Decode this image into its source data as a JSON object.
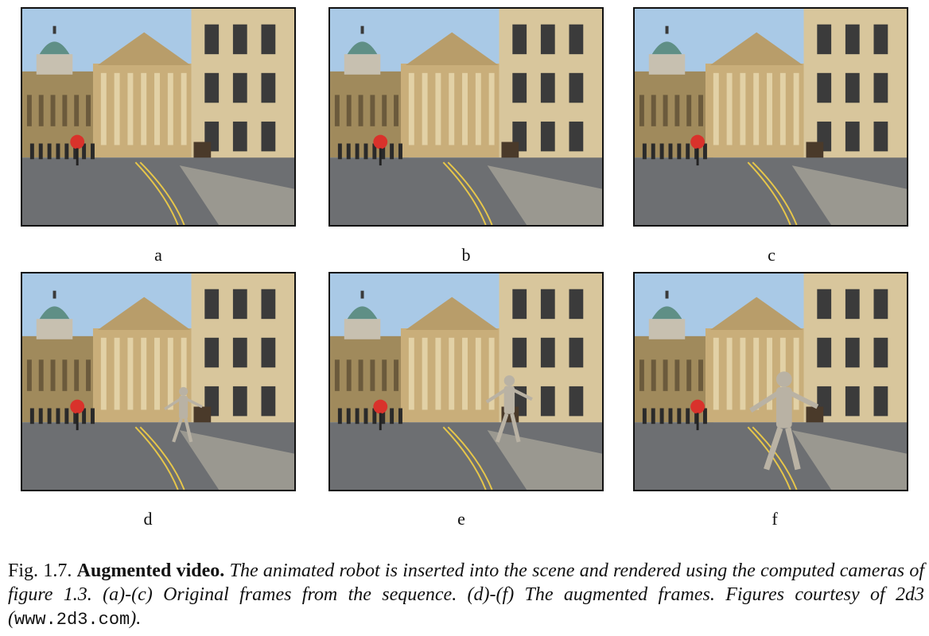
{
  "figure": {
    "panels": [
      {
        "id": "a",
        "label": "a",
        "robot": "none",
        "cyclist": "left"
      },
      {
        "id": "b",
        "label": "b",
        "robot": "none",
        "cyclist": "center"
      },
      {
        "id": "c",
        "label": "c",
        "robot": "none",
        "cyclist": "group"
      },
      {
        "id": "d",
        "label": "d",
        "robot": "small",
        "cyclist": "left"
      },
      {
        "id": "e",
        "label": "e",
        "robot": "medium",
        "cyclist": "center"
      },
      {
        "id": "f",
        "label": "f",
        "robot": "large",
        "cyclist": "group"
      }
    ],
    "colors": {
      "sky": "#a9c9e6",
      "stone": "#c9ae7a",
      "road": "#6d6f72",
      "cyclist": "#d9322b",
      "robot": "#b9b2a4"
    }
  },
  "caption": {
    "fig_number": "Fig. 1.7.",
    "title": "Augmented video.",
    "body": "The animated robot is inserted into the scene and rendered using the computed cameras of figure 1.3.  (a)-(c) Original frames from the sequence.  (d)-(f) The augmented frames. Figures courtesy of 2d3 (",
    "url": "www.2d3.com",
    "end": ")."
  }
}
